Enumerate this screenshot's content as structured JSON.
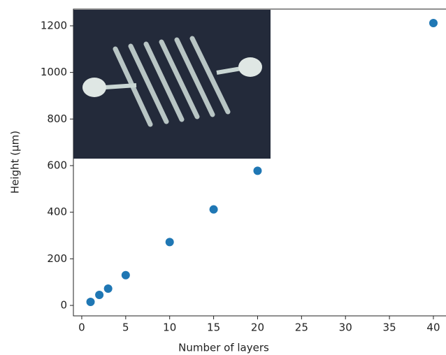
{
  "chart_data": {
    "type": "scatter",
    "x_label": "Number of layers",
    "y_label": "Height (μm)",
    "x": [
      1,
      2,
      3,
      5,
      10,
      15,
      20,
      40
    ],
    "series": [
      {
        "color": "#1f77b4",
        "values": [
          15,
          45,
          72,
          130,
          272,
          412,
          578,
          1212
        ]
      }
    ],
    "xlim": [
      -0.95,
      41.95
    ],
    "ylim": [
      -44.85,
      1271.85
    ],
    "xticks": [
      0,
      5,
      10,
      15,
      20,
      25,
      30,
      35,
      40
    ],
    "yticks": [
      0,
      200,
      400,
      600,
      800,
      1000,
      1200
    ]
  }
}
